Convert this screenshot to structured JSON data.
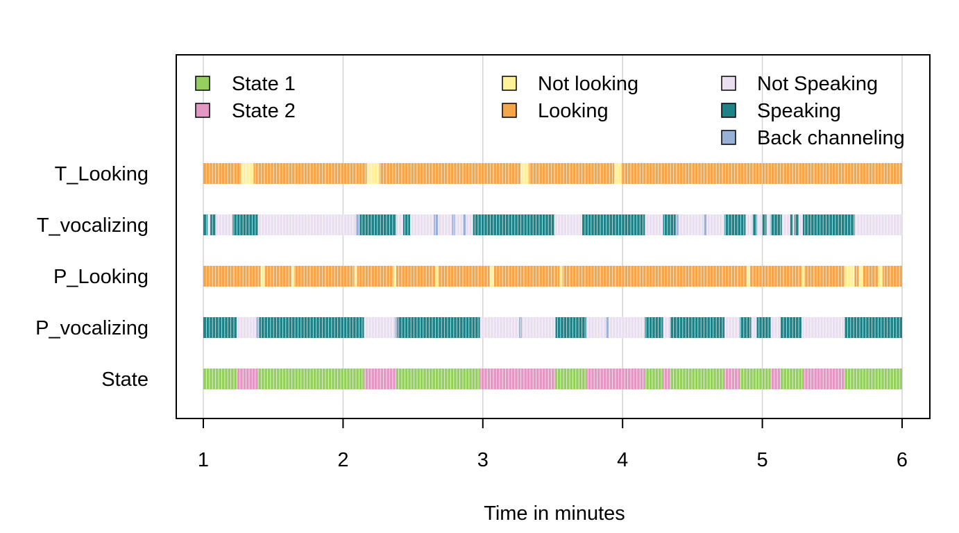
{
  "chart_data": {
    "type": "timeline",
    "xlabel": "Time in minutes",
    "xlim": [
      1,
      6
    ],
    "xticks": [
      1,
      2,
      3,
      4,
      5,
      6
    ],
    "grid": "vertical",
    "legend": [
      {
        "group": "state",
        "placement": "top-left",
        "items": [
          {
            "key": "s1",
            "label": "State 1",
            "color": "#95D05F"
          },
          {
            "key": "s2",
            "label": "State 2",
            "color": "#E597C4"
          }
        ]
      },
      {
        "group": "looking",
        "placement": "top-center",
        "items": [
          {
            "key": "nl",
            "label": "Not looking",
            "color": "#FFF09A"
          },
          {
            "key": "lk",
            "label": "Looking",
            "color": "#F6A64A"
          }
        ]
      },
      {
        "group": "vocalizing",
        "placement": "top-right",
        "items": [
          {
            "key": "ns",
            "label": "Not Speaking",
            "color": "#E9DFF0"
          },
          {
            "key": "sp",
            "label": "Speaking",
            "color": "#1F8287"
          },
          {
            "key": "bc",
            "label": "Back channeling",
            "color": "#98AFD6"
          }
        ]
      }
    ],
    "rows": [
      {
        "label": "T_Looking",
        "segments": [
          [
            1.0,
            1.27,
            "lk"
          ],
          [
            1.27,
            1.36,
            "nl"
          ],
          [
            1.36,
            2.17,
            "lk"
          ],
          [
            2.17,
            2.26,
            "nl"
          ],
          [
            2.26,
            3.27,
            "lk"
          ],
          [
            3.27,
            3.33,
            "nl"
          ],
          [
            3.33,
            3.94,
            "lk"
          ],
          [
            3.94,
            3.99,
            "nl"
          ],
          [
            3.99,
            6.0,
            "lk"
          ]
        ]
      },
      {
        "label": "T_vocalizing",
        "segments": [
          [
            1.0,
            1.03,
            "sp"
          ],
          [
            1.03,
            1.05,
            "ns"
          ],
          [
            1.05,
            1.09,
            "sp"
          ],
          [
            1.09,
            1.21,
            "ns"
          ],
          [
            1.21,
            1.39,
            "sp"
          ],
          [
            1.39,
            2.09,
            "ns"
          ],
          [
            2.09,
            2.12,
            "bc"
          ],
          [
            2.12,
            2.38,
            "sp"
          ],
          [
            2.38,
            2.43,
            "ns"
          ],
          [
            2.43,
            2.48,
            "sp"
          ],
          [
            2.48,
            2.65,
            "ns"
          ],
          [
            2.65,
            2.68,
            "bc"
          ],
          [
            2.68,
            2.78,
            "ns"
          ],
          [
            2.78,
            2.8,
            "bc"
          ],
          [
            2.8,
            2.86,
            "ns"
          ],
          [
            2.86,
            2.88,
            "bc"
          ],
          [
            2.88,
            2.93,
            "ns"
          ],
          [
            2.93,
            3.51,
            "sp"
          ],
          [
            3.51,
            3.71,
            "ns"
          ],
          [
            3.71,
            4.16,
            "sp"
          ],
          [
            4.16,
            4.29,
            "ns"
          ],
          [
            4.29,
            4.38,
            "sp"
          ],
          [
            4.38,
            4.4,
            "bc"
          ],
          [
            4.4,
            4.58,
            "ns"
          ],
          [
            4.58,
            4.6,
            "bc"
          ],
          [
            4.6,
            4.73,
            "ns"
          ],
          [
            4.73,
            4.88,
            "sp"
          ],
          [
            4.88,
            4.93,
            "ns"
          ],
          [
            4.93,
            4.96,
            "sp"
          ],
          [
            4.96,
            5.0,
            "ns"
          ],
          [
            5.0,
            5.03,
            "sp"
          ],
          [
            5.03,
            5.06,
            "ns"
          ],
          [
            5.06,
            5.14,
            "sp"
          ],
          [
            5.14,
            5.2,
            "ns"
          ],
          [
            5.2,
            5.22,
            "sp"
          ],
          [
            5.22,
            5.23,
            "ns"
          ],
          [
            5.23,
            5.26,
            "sp"
          ],
          [
            5.26,
            5.29,
            "ns"
          ],
          [
            5.29,
            5.66,
            "sp"
          ],
          [
            5.66,
            6.0,
            "ns"
          ]
        ]
      },
      {
        "label": "P_Looking",
        "segments": [
          [
            1.0,
            1.41,
            "lk"
          ],
          [
            1.41,
            1.44,
            "nl"
          ],
          [
            1.44,
            1.63,
            "lk"
          ],
          [
            1.63,
            1.65,
            "nl"
          ],
          [
            1.65,
            2.08,
            "lk"
          ],
          [
            2.08,
            2.1,
            "nl"
          ],
          [
            2.1,
            2.36,
            "lk"
          ],
          [
            2.36,
            2.38,
            "nl"
          ],
          [
            2.38,
            2.66,
            "lk"
          ],
          [
            2.66,
            2.68,
            "nl"
          ],
          [
            2.68,
            3.05,
            "lk"
          ],
          [
            3.05,
            3.08,
            "nl"
          ],
          [
            3.08,
            3.55,
            "lk"
          ],
          [
            3.55,
            3.57,
            "nl"
          ],
          [
            3.57,
            4.89,
            "lk"
          ],
          [
            4.89,
            4.91,
            "nl"
          ],
          [
            4.91,
            5.28,
            "lk"
          ],
          [
            5.28,
            5.3,
            "nl"
          ],
          [
            5.3,
            5.59,
            "lk"
          ],
          [
            5.59,
            5.66,
            "nl"
          ],
          [
            5.66,
            5.69,
            "lk"
          ],
          [
            5.69,
            5.72,
            "nl"
          ],
          [
            5.72,
            5.83,
            "lk"
          ],
          [
            5.83,
            5.86,
            "nl"
          ],
          [
            5.86,
            6.0,
            "lk"
          ]
        ]
      },
      {
        "label": "P_vocalizing",
        "segments": [
          [
            1.0,
            1.24,
            "sp"
          ],
          [
            1.24,
            1.38,
            "ns"
          ],
          [
            1.38,
            1.4,
            "bc"
          ],
          [
            1.4,
            2.15,
            "sp"
          ],
          [
            2.15,
            2.37,
            "ns"
          ],
          [
            2.37,
            2.39,
            "bc"
          ],
          [
            2.39,
            2.98,
            "sp"
          ],
          [
            2.98,
            3.26,
            "ns"
          ],
          [
            3.26,
            3.28,
            "bc"
          ],
          [
            3.28,
            3.52,
            "ns"
          ],
          [
            3.52,
            3.74,
            "sp"
          ],
          [
            3.74,
            3.88,
            "ns"
          ],
          [
            3.88,
            3.9,
            "bc"
          ],
          [
            3.9,
            4.16,
            "ns"
          ],
          [
            4.16,
            4.29,
            "sp"
          ],
          [
            4.29,
            4.34,
            "ns"
          ],
          [
            4.34,
            4.73,
            "sp"
          ],
          [
            4.73,
            4.84,
            "ns"
          ],
          [
            4.84,
            4.92,
            "sp"
          ],
          [
            4.92,
            4.96,
            "ns"
          ],
          [
            4.96,
            5.06,
            "sp"
          ],
          [
            5.06,
            5.13,
            "ns"
          ],
          [
            5.13,
            5.28,
            "sp"
          ],
          [
            5.28,
            5.59,
            "ns"
          ],
          [
            5.59,
            6.0,
            "sp"
          ]
        ]
      },
      {
        "label": "State",
        "segments": [
          [
            1.0,
            1.24,
            "s1"
          ],
          [
            1.24,
            1.39,
            "s2"
          ],
          [
            1.39,
            2.15,
            "s1"
          ],
          [
            2.15,
            2.38,
            "s2"
          ],
          [
            2.38,
            2.98,
            "s1"
          ],
          [
            2.98,
            3.52,
            "s2"
          ],
          [
            3.52,
            3.74,
            "s1"
          ],
          [
            3.74,
            4.16,
            "s2"
          ],
          [
            4.16,
            4.29,
            "s1"
          ],
          [
            4.29,
            4.34,
            "s2"
          ],
          [
            4.34,
            4.73,
            "s1"
          ],
          [
            4.73,
            4.84,
            "s2"
          ],
          [
            4.84,
            4.96,
            "s1"
          ],
          [
            4.96,
            5.06,
            "s1"
          ],
          [
            5.06,
            5.13,
            "s2"
          ],
          [
            5.13,
            5.29,
            "s1"
          ],
          [
            5.29,
            5.59,
            "s2"
          ],
          [
            5.59,
            6.0,
            "s1"
          ]
        ]
      }
    ]
  }
}
